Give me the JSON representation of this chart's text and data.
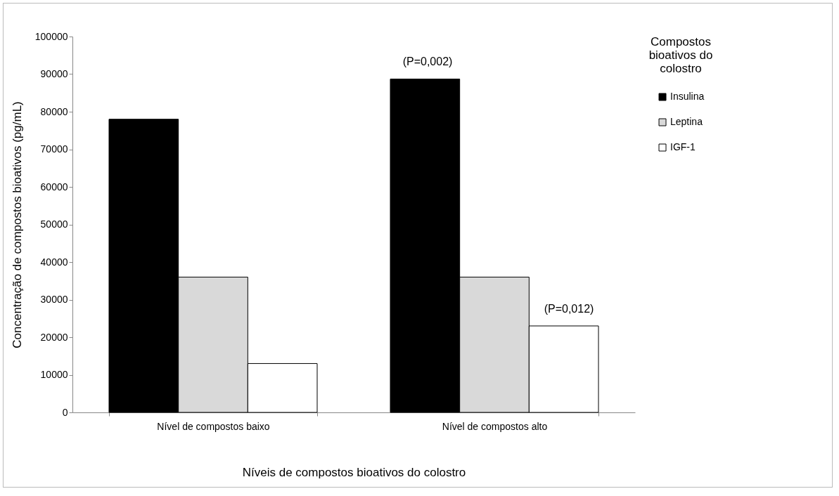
{
  "chart_data": {
    "type": "bar",
    "xlabel": "Níveis de compostos bioativos do colostro",
    "ylabel": "Concentração de compostos bioativos (pg/mL)",
    "legend_title": "Compostos bioativos do colostro",
    "categories": [
      "Nível de compostos baixo",
      "Nível de compostos alto"
    ],
    "series": [
      {
        "name": "Insulina",
        "color": "#000000",
        "values": [
          78000,
          88700
        ]
      },
      {
        "name": "Leptina",
        "color": "#d9d9d9",
        "values": [
          36000,
          36000
        ]
      },
      {
        "name": "IGF-1",
        "color": "#ffffff",
        "values": [
          13000,
          23000
        ]
      }
    ],
    "ylim": [
      0,
      100000
    ],
    "yticks": [
      0,
      10000,
      20000,
      30000,
      40000,
      50000,
      60000,
      70000,
      80000,
      90000,
      100000
    ],
    "annotations": [
      "(P=0,002)",
      "(P=0,012)"
    ],
    "grid": false,
    "legend": "right"
  }
}
